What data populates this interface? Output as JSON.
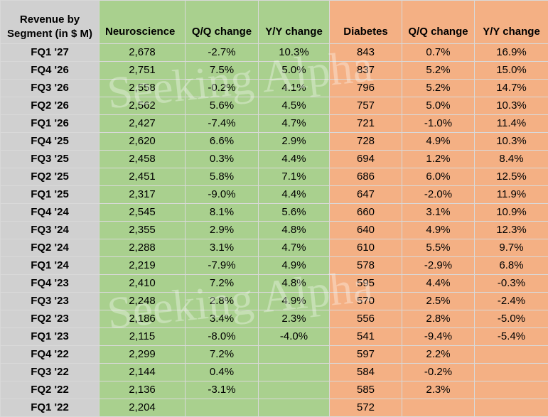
{
  "chart_data": {
    "type": "table",
    "columns": [
      "Revenue by Segment (in $ M)",
      "Neuroscience",
      "Q/Q change",
      "Y/Y change",
      "Diabetes",
      "Q/Q change",
      "Y/Y change"
    ],
    "rows": [
      [
        "FQ1 '27",
        "2,678",
        "-2.7%",
        "10.3%",
        "843",
        "0.7%",
        "16.9%"
      ],
      [
        "FQ4 '26",
        "2,751",
        "7.5%",
        "5.0%",
        "837",
        "5.2%",
        "15.0%"
      ],
      [
        "FQ3 '26",
        "2,558",
        "-0.2%",
        "4.1%",
        "796",
        "5.2%",
        "14.7%"
      ],
      [
        "FQ2 '26",
        "2,562",
        "5.6%",
        "4.5%",
        "757",
        "5.0%",
        "10.3%"
      ],
      [
        "FQ1 '26",
        "2,427",
        "-7.4%",
        "4.7%",
        "721",
        "-1.0%",
        "11.4%"
      ],
      [
        "FQ4 '25",
        "2,620",
        "6.6%",
        "2.9%",
        "728",
        "4.9%",
        "10.3%"
      ],
      [
        "FQ3 '25",
        "2,458",
        "0.3%",
        "4.4%",
        "694",
        "1.2%",
        "8.4%"
      ],
      [
        "FQ2 '25",
        "2,451",
        "5.8%",
        "7.1%",
        "686",
        "6.0%",
        "12.5%"
      ],
      [
        "FQ1 '25",
        "2,317",
        "-9.0%",
        "4.4%",
        "647",
        "-2.0%",
        "11.9%"
      ],
      [
        "FQ4 '24",
        "2,545",
        "8.1%",
        "5.6%",
        "660",
        "3.1%",
        "10.9%"
      ],
      [
        "FQ3 '24",
        "2,355",
        "2.9%",
        "4.8%",
        "640",
        "4.9%",
        "12.3%"
      ],
      [
        "FQ2 '24",
        "2,288",
        "3.1%",
        "4.7%",
        "610",
        "5.5%",
        "9.7%"
      ],
      [
        "FQ1 '24",
        "2,219",
        "-7.9%",
        "4.9%",
        "578",
        "-2.9%",
        "6.8%"
      ],
      [
        "FQ4 '23",
        "2,410",
        "7.2%",
        "4.8%",
        "595",
        "4.4%",
        "-0.3%"
      ],
      [
        "FQ3 '23",
        "2,248",
        "2.8%",
        "4.9%",
        "570",
        "2.5%",
        "-2.4%"
      ],
      [
        "FQ2 '23",
        "2,186",
        "3.4%",
        "2.3%",
        "556",
        "2.8%",
        "-5.0%"
      ],
      [
        "FQ1 '23",
        "2,115",
        "-8.0%",
        "-4.0%",
        "541",
        "-9.4%",
        "-5.4%"
      ],
      [
        "FQ4 '22",
        "2,299",
        "7.2%",
        "",
        "597",
        "2.2%",
        ""
      ],
      [
        "FQ3 '22",
        "2,144",
        "0.4%",
        "",
        "584",
        "-0.2%",
        ""
      ],
      [
        "FQ2 '22",
        "2,136",
        "-3.1%",
        "",
        "585",
        "2.3%",
        ""
      ],
      [
        "FQ1 '22",
        "2,204",
        "",
        "",
        "572",
        "",
        ""
      ]
    ],
    "watermark": "Seeking Alpha",
    "colors": {
      "label_column": "#d0d0d0",
      "neuroscience_group": "#a9d08e",
      "diabetes_group": "#f4b084",
      "gridline": "#d9d9d9"
    }
  }
}
